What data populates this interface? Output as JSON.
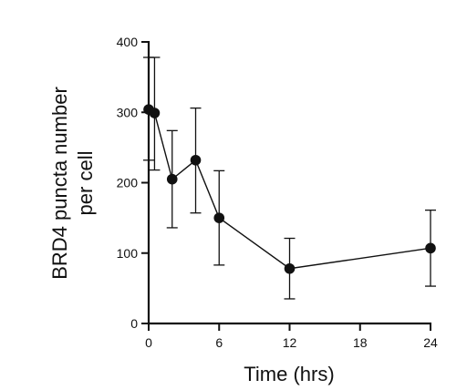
{
  "chart_data": {
    "type": "line",
    "title": "",
    "xlabel": "Time (hrs)",
    "ylabel_lines": [
      "BRD4 puncta number",
      "per cell"
    ],
    "xlim": [
      0,
      24
    ],
    "ylim": [
      0,
      400
    ],
    "xticks": [
      0,
      6,
      12,
      18,
      24
    ],
    "yticks": [
      0,
      100,
      200,
      300,
      400
    ],
    "grid": false,
    "series": [
      {
        "x": [
          0,
          0.5,
          2,
          4,
          6,
          12,
          24
        ],
        "y": [
          304,
          299,
          205,
          232,
          150,
          78,
          107
        ],
        "err_low": [
          232,
          218,
          136,
          157,
          83,
          35,
          53
        ],
        "err_high": [
          378,
          378,
          274,
          306,
          217,
          121,
          161
        ]
      }
    ],
    "marker": "circle",
    "color": "#111111"
  }
}
